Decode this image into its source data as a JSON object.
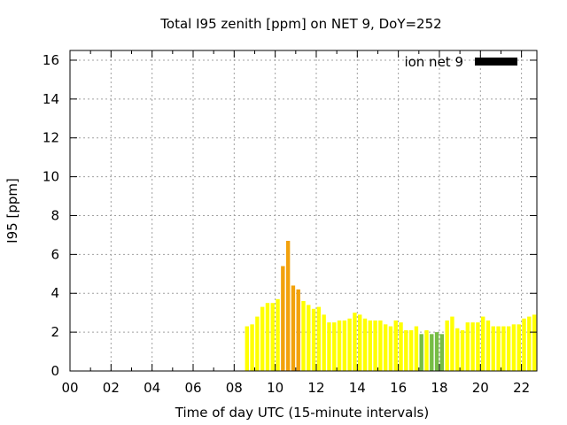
{
  "chart_data": {
    "type": "bar",
    "title": "Total I95 zenith [ppm] on NET 9, DoY=252",
    "xlabel": "Time of day UTC (15-minute intervals)",
    "ylabel": "I95 [ppm]",
    "xlim": [
      0,
      22.75
    ],
    "ylim": [
      0,
      16.5
    ],
    "xticks": [
      "00",
      "02",
      "04",
      "06",
      "08",
      "10",
      "12",
      "14",
      "16",
      "18",
      "20",
      "22"
    ],
    "yticks": [
      "0",
      "2",
      "4",
      "6",
      "8",
      "10",
      "12",
      "14",
      "16"
    ],
    "grid": true,
    "legend": {
      "label": "ion net 9",
      "color": "#000000",
      "position": "top-right"
    },
    "bar_width_hours": 0.19,
    "colors": {
      "low": "#ffff00",
      "mid": "#f2a20c",
      "alt": "#76bd45"
    },
    "bars": [
      {
        "x": 8.625,
        "y": 2.3,
        "c": "low"
      },
      {
        "x": 8.875,
        "y": 2.4,
        "c": "low"
      },
      {
        "x": 9.125,
        "y": 2.8,
        "c": "low"
      },
      {
        "x": 9.375,
        "y": 3.3,
        "c": "low"
      },
      {
        "x": 9.625,
        "y": 3.5,
        "c": "low"
      },
      {
        "x": 9.875,
        "y": 3.5,
        "c": "low"
      },
      {
        "x": 10.125,
        "y": 3.7,
        "c": "low"
      },
      {
        "x": 10.375,
        "y": 5.4,
        "c": "mid"
      },
      {
        "x": 10.625,
        "y": 6.7,
        "c": "mid"
      },
      {
        "x": 10.875,
        "y": 4.4,
        "c": "mid"
      },
      {
        "x": 11.125,
        "y": 4.2,
        "c": "mid"
      },
      {
        "x": 11.375,
        "y": 3.6,
        "c": "low"
      },
      {
        "x": 11.625,
        "y": 3.4,
        "c": "low"
      },
      {
        "x": 11.875,
        "y": 3.2,
        "c": "low"
      },
      {
        "x": 12.125,
        "y": 3.3,
        "c": "low"
      },
      {
        "x": 12.375,
        "y": 2.9,
        "c": "low"
      },
      {
        "x": 12.625,
        "y": 2.5,
        "c": "low"
      },
      {
        "x": 12.875,
        "y": 2.5,
        "c": "low"
      },
      {
        "x": 13.125,
        "y": 2.6,
        "c": "low"
      },
      {
        "x": 13.375,
        "y": 2.6,
        "c": "low"
      },
      {
        "x": 13.625,
        "y": 2.7,
        "c": "low"
      },
      {
        "x": 13.875,
        "y": 3.0,
        "c": "low"
      },
      {
        "x": 14.125,
        "y": 2.9,
        "c": "low"
      },
      {
        "x": 14.375,
        "y": 2.7,
        "c": "low"
      },
      {
        "x": 14.625,
        "y": 2.6,
        "c": "low"
      },
      {
        "x": 14.875,
        "y": 2.6,
        "c": "low"
      },
      {
        "x": 15.125,
        "y": 2.6,
        "c": "low"
      },
      {
        "x": 15.375,
        "y": 2.4,
        "c": "low"
      },
      {
        "x": 15.625,
        "y": 2.3,
        "c": "low"
      },
      {
        "x": 15.875,
        "y": 2.6,
        "c": "low"
      },
      {
        "x": 16.125,
        "y": 2.5,
        "c": "low"
      },
      {
        "x": 16.375,
        "y": 2.1,
        "c": "low"
      },
      {
        "x": 16.625,
        "y": 2.1,
        "c": "low"
      },
      {
        "x": 16.875,
        "y": 2.3,
        "c": "low"
      },
      {
        "x": 17.125,
        "y": 1.9,
        "c": "alt"
      },
      {
        "x": 17.375,
        "y": 2.1,
        "c": "low"
      },
      {
        "x": 17.625,
        "y": 1.9,
        "c": "alt"
      },
      {
        "x": 17.875,
        "y": 2.0,
        "c": "alt"
      },
      {
        "x": 18.125,
        "y": 1.9,
        "c": "alt"
      },
      {
        "x": 18.375,
        "y": 2.6,
        "c": "low"
      },
      {
        "x": 18.625,
        "y": 2.8,
        "c": "low"
      },
      {
        "x": 18.875,
        "y": 2.2,
        "c": "low"
      },
      {
        "x": 19.125,
        "y": 2.1,
        "c": "low"
      },
      {
        "x": 19.375,
        "y": 2.5,
        "c": "low"
      },
      {
        "x": 19.625,
        "y": 2.5,
        "c": "low"
      },
      {
        "x": 19.875,
        "y": 2.5,
        "c": "low"
      },
      {
        "x": 20.125,
        "y": 2.8,
        "c": "low"
      },
      {
        "x": 20.375,
        "y": 2.6,
        "c": "low"
      },
      {
        "x": 20.625,
        "y": 2.3,
        "c": "low"
      },
      {
        "x": 20.875,
        "y": 2.3,
        "c": "low"
      },
      {
        "x": 21.125,
        "y": 2.3,
        "c": "low"
      },
      {
        "x": 21.375,
        "y": 2.3,
        "c": "low"
      },
      {
        "x": 21.625,
        "y": 2.4,
        "c": "low"
      },
      {
        "x": 21.875,
        "y": 2.4,
        "c": "low"
      },
      {
        "x": 22.125,
        "y": 2.7,
        "c": "low"
      },
      {
        "x": 22.375,
        "y": 2.8,
        "c": "low"
      },
      {
        "x": 22.625,
        "y": 2.9,
        "c": "low"
      }
    ]
  }
}
